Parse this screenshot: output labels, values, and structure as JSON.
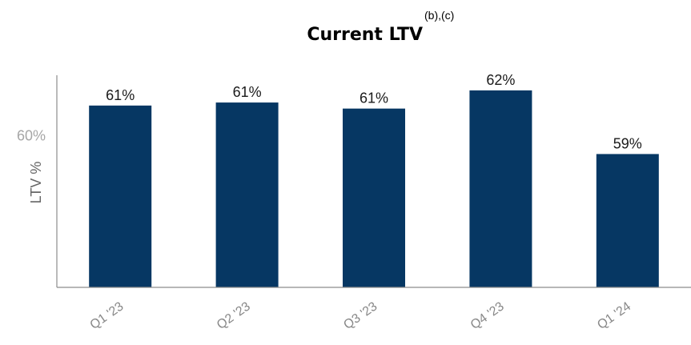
{
  "chart_data": {
    "type": "bar",
    "title": "Current LTV",
    "title_superscript": "(b),(c)",
    "ylabel": "LTV %",
    "categories": [
      "Q1 '23",
      "Q2 '23",
      "Q3 '23",
      "Q4 '23",
      "Q1 '24"
    ],
    "values": [
      61.0,
      61.1,
      60.9,
      61.5,
      59.4
    ],
    "data_labels": [
      "61%",
      "61%",
      "61%",
      "62%",
      "59%"
    ],
    "y_ticks": [
      {
        "value": 60,
        "label": "60%"
      }
    ],
    "ylim": [
      55,
      62
    ],
    "grid": false,
    "legend": "none",
    "colors": {
      "bar": "#063763"
    }
  }
}
